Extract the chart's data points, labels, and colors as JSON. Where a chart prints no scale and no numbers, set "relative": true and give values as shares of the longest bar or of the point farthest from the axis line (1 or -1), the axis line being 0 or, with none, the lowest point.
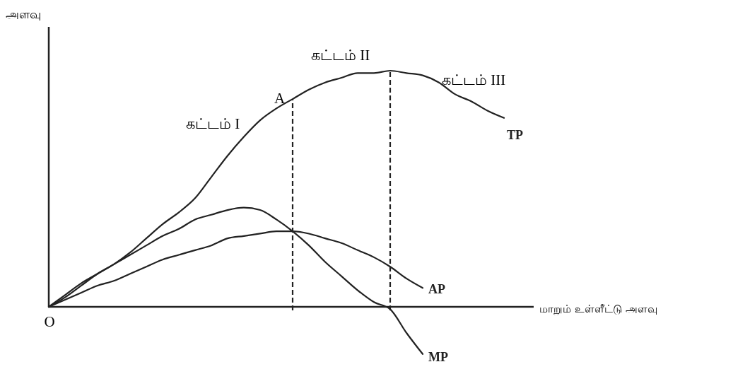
{
  "chart_data": {
    "type": "line",
    "relative": true,
    "xlabel": "மாறும் உள்ளீட்டு அளவு",
    "ylabel": "அளவு",
    "categories": [
      null,
      null,
      null,
      null,
      null,
      null,
      null,
      null,
      null,
      null,
      null,
      null,
      null,
      null,
      null,
      null,
      null,
      null,
      null,
      null,
      null,
      null,
      null,
      null,
      null,
      null,
      null,
      null,
      null
    ],
    "series": [
      {
        "name": "TP",
        "color": "#222222",
        "values": [
          0,
          0.04,
          0.09,
          0.14,
          0.18,
          0.23,
          0.29,
          0.35,
          0.4,
          0.46,
          0.55,
          0.64,
          0.72,
          0.79,
          0.84,
          0.88,
          0.92,
          0.95,
          0.97,
          0.99,
          0.99,
          1,
          0.99,
          0.98,
          0.95,
          0.9,
          0.87,
          0.83,
          0.8
        ]
      },
      {
        "name": "AP",
        "color": "#222222",
        "values": [
          0,
          0.03,
          0.06,
          0.09,
          0.11,
          0.14,
          0.17,
          0.2,
          0.22,
          0.24,
          0.26,
          0.29,
          0.3,
          0.31,
          0.32,
          0.32,
          0.31,
          0.29,
          0.27,
          0.24,
          0.21,
          0.17,
          0.12,
          0.08,
          null,
          null,
          null,
          null,
          null
        ]
      },
      {
        "name": "MP",
        "color": "#222222",
        "values": [
          0,
          0.05,
          0.1,
          0.14,
          0.18,
          0.22,
          0.26,
          0.3,
          0.33,
          0.37,
          0.39,
          0.41,
          0.42,
          0.41,
          0.37,
          0.32,
          0.26,
          0.19,
          0.13,
          0.07,
          0.02,
          -0.01,
          -0.11,
          -0.2,
          null,
          null,
          null,
          null,
          null
        ]
      }
    ],
    "annotations": [
      "கட்டம் I",
      "கட்டம் II",
      "கட்டம் III",
      "A",
      "O"
    ]
  }
}
